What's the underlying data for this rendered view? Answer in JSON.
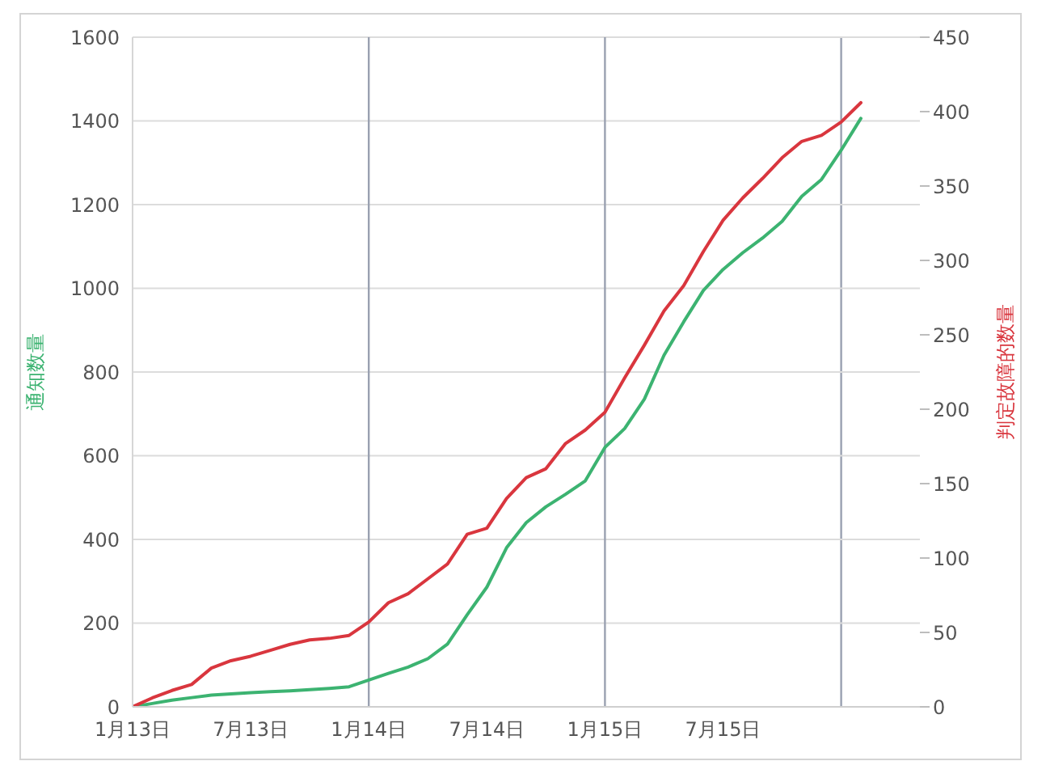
{
  "chart_data": {
    "type": "line",
    "ylabel": "通知数量",
    "y2label": "判定故障的数量",
    "categories": [
      "1月13日",
      null,
      null,
      null,
      null,
      null,
      "7月13日",
      null,
      null,
      null,
      null,
      null,
      "1月14日",
      null,
      null,
      null,
      null,
      null,
      "7月14日",
      null,
      null,
      null,
      null,
      null,
      "1月15日",
      null,
      null,
      null,
      null,
      null,
      "7月15日",
      null,
      null,
      null,
      null,
      null,
      null,
      null,
      null,
      null,
      null
    ],
    "ylim": [
      0,
      1600
    ],
    "yticks": [
      0,
      200,
      400,
      600,
      800,
      1000,
      1200,
      1400,
      1600
    ],
    "y2lim": [
      0,
      450
    ],
    "y2ticks": [
      0,
      50,
      100,
      150,
      200,
      250,
      300,
      350,
      400,
      450
    ],
    "grid": "y",
    "ref_lines": [
      {
        "axis": "x",
        "value": "1月14日",
        "color": "#9aa1b1"
      },
      {
        "axis": "x",
        "value": "1月15日",
        "color": "#9aa1b1"
      }
    ],
    "series": [
      {
        "color": "#3cb371",
        "axis": "y",
        "values": [
          0,
          8,
          16,
          22,
          28,
          31,
          34,
          36,
          38,
          41,
          44,
          48,
          64,
          80,
          95,
          115,
          150,
          220,
          286,
          380,
          440,
          478,
          508,
          540,
          620,
          665,
          735,
          840,
          920,
          995,
          1045,
          1085,
          1120,
          1160,
          1220,
          1260,
          1330,
          1406,
          null,
          null,
          null
        ]
      },
      {
        "color": "#d9363e",
        "axis": "y2",
        "values": [
          0,
          6,
          11,
          15,
          26,
          31,
          34,
          38,
          42,
          45,
          46,
          48,
          57,
          70,
          76,
          86,
          96,
          116,
          120,
          140,
          154,
          160,
          177,
          186,
          198,
          221,
          243,
          266,
          283,
          306,
          327,
          342,
          355,
          369,
          380,
          384,
          393,
          406,
          null,
          null,
          null
        ]
      }
    ]
  }
}
